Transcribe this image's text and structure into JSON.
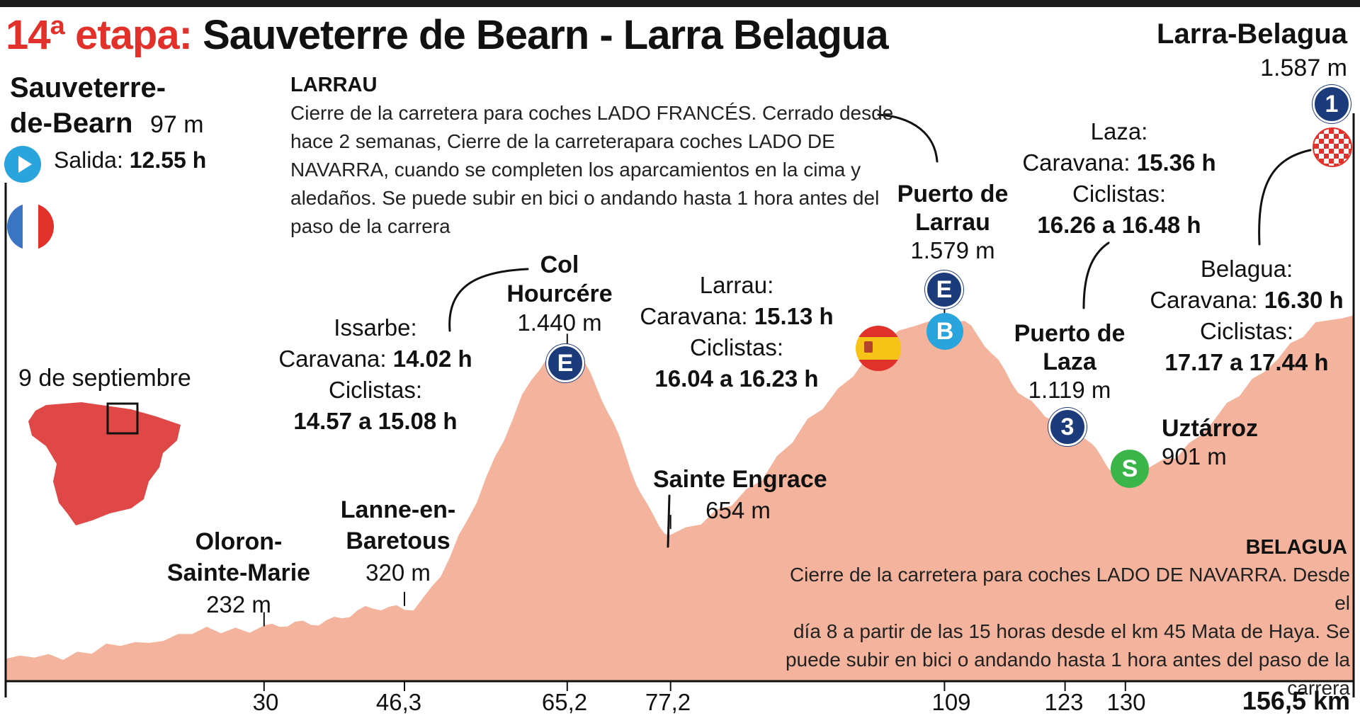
{
  "title": {
    "prefix": "14ª etapa:",
    "main": "Sauveterre de Bearn - Larra Belagua"
  },
  "start": {
    "name_line1": "Sauveterre-",
    "name_line2": "de-Bearn",
    "altitude": "97 m",
    "salida_label": "Salida:",
    "salida_time": "12.55 h"
  },
  "finish": {
    "name": "Larra-Belagua",
    "altitude": "1.587 m",
    "badge": "1"
  },
  "date": "9 de septiembre",
  "larrau_note": {
    "title": "LARRAU",
    "lines": [
      "Cierre de la carretera para coches LADO FRANCÉS. Cerrado desde",
      "hace 2 semanas, Cierre de la carreterapara coches LADO DE",
      "NAVARRA, cuando se completen los aparcamientos en la cima y",
      "aledaños. Se puede subir en bici o andando hasta 1 hora antes del",
      "paso de la carrera"
    ]
  },
  "belagua_note": {
    "title": "BELAGUA",
    "lines": [
      "Cierre de la carretera para coches LADO DE NAVARRA. Desde el",
      "día 8 a partir de las 15 horas desde el km 45 Mata de Haya. Se",
      "puede subir en bici o andando hasta 1 hora antes del paso de la",
      "carrera"
    ]
  },
  "places": {
    "oloron": {
      "line1": "Oloron-",
      "line2": "Sainte-Marie",
      "altitude": "232 m"
    },
    "lanne": {
      "line1": "Lanne-en-",
      "line2": "Baretous",
      "altitude": "320 m"
    },
    "hourcere": {
      "line1": "Col",
      "line2": "Hourcére",
      "altitude": "1.440 m",
      "badge": "E"
    },
    "engrace": {
      "line1": "Sainte Engrace",
      "altitude": "654 m"
    },
    "larrau": {
      "line1": "Puerto de",
      "line2": "Larrau",
      "altitude": "1.579 m",
      "badge1": "E",
      "badge2": "B"
    },
    "laza": {
      "line1": "Puerto de",
      "line2": "Laza",
      "altitude": "1.119 m",
      "badge": "3"
    },
    "uztarroz": {
      "line1": "Uztárroz",
      "altitude": "901 m",
      "badge": "S"
    }
  },
  "timings": {
    "issarbe": {
      "place": "Issarbe:",
      "caravana_label": "Caravana:",
      "caravana": "14.02 h",
      "ciclistas_label": "Ciclistas:",
      "ciclistas": "14.57 a 15.08 h"
    },
    "larrau": {
      "place": "Larrau:",
      "caravana_label": "Caravana:",
      "caravana": "15.13 h",
      "ciclistas_label": "Ciclistas:",
      "ciclistas": "16.04 a 16.23 h"
    },
    "laza": {
      "place": "Laza:",
      "caravana_label": "Caravana:",
      "caravana": "15.36 h",
      "ciclistas_label": "Ciclistas:",
      "ciclistas": "16.26 a 16.48 h"
    },
    "belagua": {
      "place": "Belagua:",
      "caravana_label": "Caravana:",
      "caravana": "16.30 h",
      "ciclistas_label": "Ciclistas:",
      "ciclistas": "17.17 a 17.44 h"
    }
  },
  "km_labels": [
    "30",
    "46,3",
    "65,2",
    "77,2",
    "109",
    "123",
    "130",
    "156,5 km"
  ],
  "colors": {
    "profile": "#f4b39c",
    "accent": "#e2312a",
    "navy": "#1c3b7a",
    "sky": "#2aa4dc",
    "green": "#3ab54a",
    "map": "#e04848"
  },
  "chart_data": {
    "type": "area",
    "title": "14ª etapa: Sauveterre de Bearn - Larra Belagua",
    "xlabel": "",
    "ylabel": "",
    "x_unit": "km",
    "y_unit": "m",
    "xlim": [
      0,
      156.5
    ],
    "points": [
      {
        "km": 0,
        "alt": 97,
        "label": "Sauveterre-de-Bearn"
      },
      {
        "km": 30,
        "alt": 232,
        "label": "Oloron-Sainte-Marie"
      },
      {
        "km": 46.3,
        "alt": 320,
        "label": "Lanne-en-Baretous"
      },
      {
        "km": 65.2,
        "alt": 1440,
        "label": "Col Hourcére"
      },
      {
        "km": 77.2,
        "alt": 654,
        "label": "Sainte Engrace"
      },
      {
        "km": 109,
        "alt": 1579,
        "label": "Puerto de Larrau"
      },
      {
        "km": 123,
        "alt": 1119,
        "label": "Puerto de Laza"
      },
      {
        "km": 130,
        "alt": 901,
        "label": "Uztárroz"
      },
      {
        "km": 156.5,
        "alt": 1587,
        "label": "Larra-Belagua"
      }
    ]
  }
}
